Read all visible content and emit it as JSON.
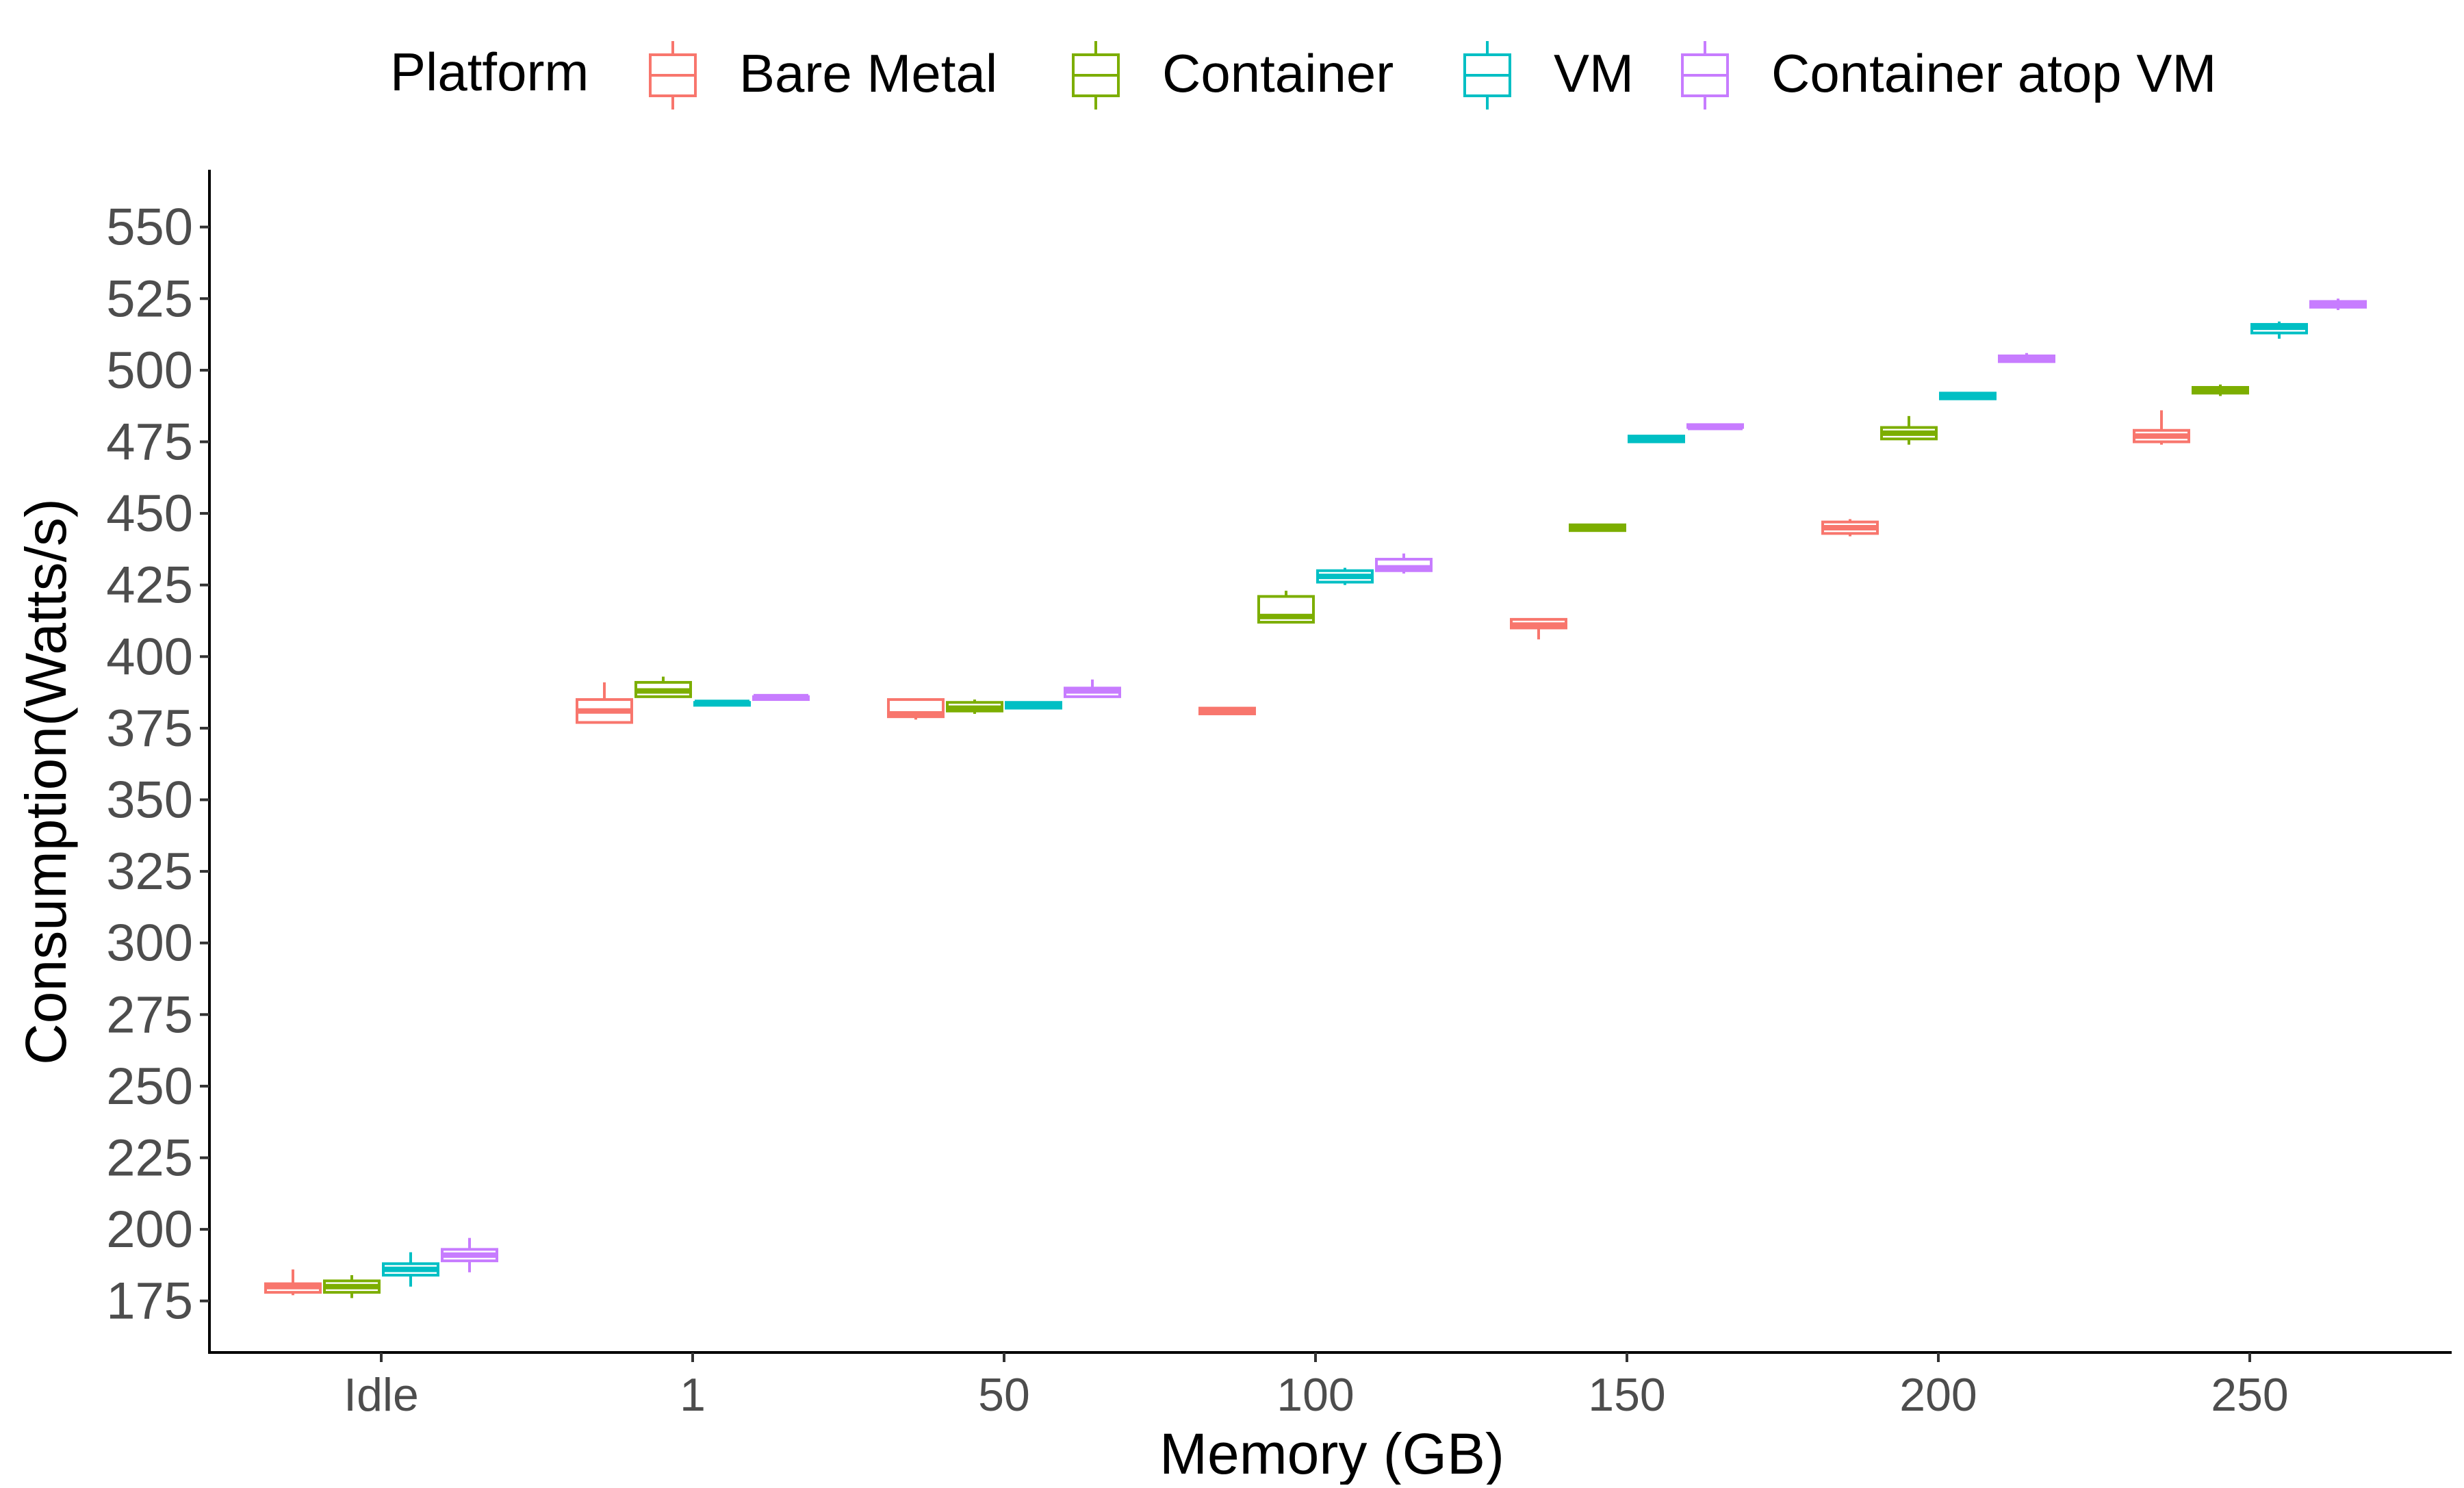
{
  "chart_data": {
    "type": "boxplot",
    "title": "",
    "xlabel": "Memory (GB)",
    "ylabel": "Consumption(Watts/s)",
    "ylim": [
      157,
      570
    ],
    "yticks": [
      175,
      200,
      225,
      250,
      275,
      300,
      325,
      350,
      375,
      400,
      425,
      450,
      475,
      500,
      525,
      550
    ],
    "categories": [
      "Idle",
      "1",
      "50",
      "100",
      "150",
      "200",
      "250"
    ],
    "grid": false,
    "legend": {
      "title": "Platform",
      "position": "top"
    },
    "series": [
      {
        "name": "Bare Metal",
        "color": "#F8766D",
        "boxes": [
          {
            "category": "Idle",
            "min": 177,
            "q1": 178,
            "median": 180,
            "q3": 181,
            "max": 186
          },
          {
            "category": "1",
            "min": 377,
            "q1": 377,
            "median": 381,
            "q3": 385,
            "max": 391
          },
          {
            "category": "50",
            "min": 378,
            "q1": 379,
            "median": 380,
            "q3": 385,
            "max": 385
          },
          {
            "category": "100",
            "min": 380,
            "q1": 380,
            "median": 381,
            "q3": 382,
            "max": 382
          },
          {
            "category": "150",
            "min": 406,
            "q1": 410,
            "median": 411,
            "q3": 413,
            "max": 413
          },
          {
            "category": "200",
            "min": 442,
            "q1": 443,
            "median": 445,
            "q3": 447,
            "max": 448
          },
          {
            "category": "250",
            "min": 474,
            "q1": 475,
            "median": 477,
            "q3": 479,
            "max": 486
          }
        ]
      },
      {
        "name": "Container",
        "color": "#7CAE00",
        "boxes": [
          {
            "category": "Idle",
            "min": 176,
            "q1": 178,
            "median": 180,
            "q3": 182,
            "max": 184
          },
          {
            "category": "1",
            "min": 386,
            "q1": 386,
            "median": 388,
            "q3": 391,
            "max": 393
          },
          {
            "category": "50",
            "min": 380,
            "q1": 381,
            "median": 382,
            "q3": 384,
            "max": 385
          },
          {
            "category": "100",
            "min": 412,
            "q1": 412,
            "median": 414,
            "q3": 421,
            "max": 423
          },
          {
            "category": "150",
            "min": 444,
            "q1": 444,
            "median": 445,
            "q3": 446,
            "max": 446
          },
          {
            "category": "200",
            "min": 474,
            "q1": 476,
            "median": 478,
            "q3": 480,
            "max": 484
          },
          {
            "category": "250",
            "min": 491,
            "q1": 492,
            "median": 493,
            "q3": 494,
            "max": 495
          }
        ]
      },
      {
        "name": "VM",
        "color": "#00BFC4",
        "boxes": [
          {
            "category": "Idle",
            "min": 180,
            "q1": 184,
            "median": 186,
            "q3": 188,
            "max": 192
          },
          {
            "category": "1",
            "min": 383,
            "q1": 383,
            "median": 384,
            "q3": 384,
            "max": 384
          },
          {
            "category": "50",
            "min": 382,
            "q1": 382,
            "median": 383,
            "q3": 384,
            "max": 384
          },
          {
            "category": "100",
            "min": 425,
            "q1": 426,
            "median": 428,
            "q3": 430,
            "max": 431
          },
          {
            "category": "150",
            "min": 475,
            "q1": 475,
            "median": 476,
            "q3": 477,
            "max": 477
          },
          {
            "category": "200",
            "min": 490,
            "q1": 490,
            "median": 491,
            "q3": 492,
            "max": 492
          },
          {
            "category": "250",
            "min": 511,
            "q1": 513,
            "median": 515,
            "q3": 516,
            "max": 517
          }
        ]
      },
      {
        "name": "Container atop VM",
        "color": "#C77CFF",
        "boxes": [
          {
            "category": "Idle",
            "min": 185,
            "q1": 189,
            "median": 191,
            "q3": 193,
            "max": 197
          },
          {
            "category": "1",
            "min": 385,
            "q1": 385,
            "median": 386,
            "q3": 386,
            "max": 386
          },
          {
            "category": "50",
            "min": 386,
            "q1": 386,
            "median": 388,
            "q3": 389,
            "max": 392
          },
          {
            "category": "100",
            "min": 429,
            "q1": 430,
            "median": 431,
            "q3": 434,
            "max": 436
          },
          {
            "category": "150",
            "min": 480,
            "q1": 480,
            "median": 480,
            "q3": 481,
            "max": 481
          },
          {
            "category": "200",
            "min": 503,
            "q1": 503,
            "median": 504,
            "q3": 505,
            "max": 506
          },
          {
            "category": "250",
            "min": 521,
            "q1": 522,
            "median": 523,
            "q3": 524,
            "max": 525
          }
        ]
      }
    ]
  }
}
